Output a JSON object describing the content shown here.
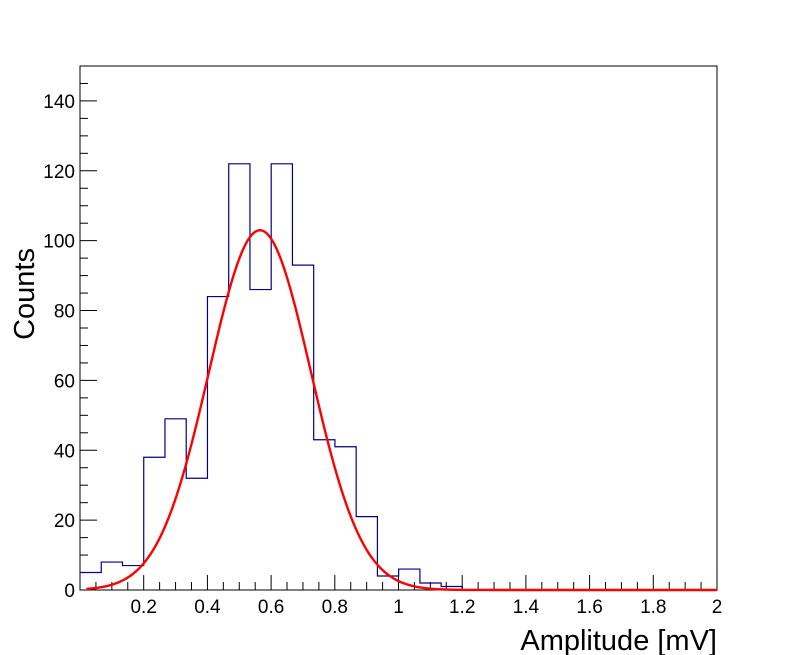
{
  "chart_data": {
    "type": "histogram",
    "title": "",
    "xlabel": "Amplitude [mV]",
    "ylabel": "Counts",
    "xlim": [
      0.0,
      2.0
    ],
    "ylim": [
      0,
      150
    ],
    "x_ticks": [
      0.2,
      0.4,
      0.6,
      0.8,
      1.0,
      1.2,
      1.4,
      1.6,
      1.8,
      2.0
    ],
    "x_tick_labels": [
      "0.2",
      "0.4",
      "0.6",
      "0.8",
      "1",
      "1.2",
      "1.4",
      "1.6",
      "1.8",
      "2"
    ],
    "y_ticks": [
      0,
      20,
      40,
      60,
      80,
      100,
      120,
      140
    ],
    "y_tick_labels": [
      "0",
      "20",
      "40",
      "60",
      "80",
      "100",
      "120",
      "140"
    ],
    "grid": false,
    "bin_width": 0.0667,
    "bin_edges_start": 0.0,
    "counts": [
      5,
      8,
      7,
      38,
      49,
      32,
      84,
      122,
      86,
      122,
      93,
      43,
      41,
      21,
      4,
      6,
      2,
      1,
      0,
      0,
      0,
      0,
      0,
      0,
      0,
      0,
      0,
      0,
      0,
      0
    ],
    "histogram_color": "#00008b",
    "fit": {
      "type": "gaussian",
      "amplitude": 103,
      "mean": 0.565,
      "sigma": 0.16,
      "x_range": [
        0.02,
        2.0
      ],
      "color": "#ff0000"
    }
  }
}
